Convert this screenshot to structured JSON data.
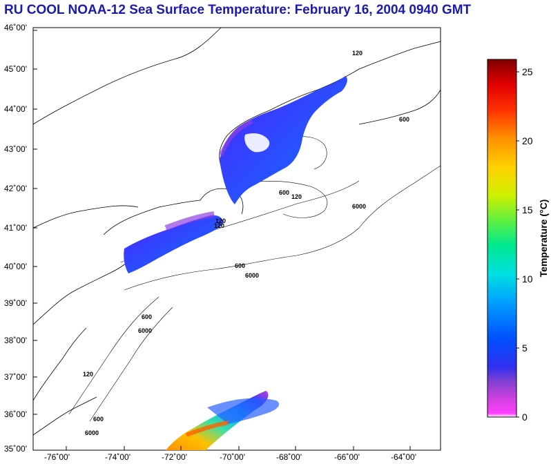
{
  "title": "RU COOL  NOAA-12  Sea Surface Temperature:  February 16, 2004 0940 GMT",
  "map": {
    "lat_labels": [
      "46˚00'",
      "45˚00'",
      "44˚00'",
      "43˚00'",
      "42˚00'",
      "41˚00'",
      "40˚00'",
      "39˚00'",
      "38˚00'",
      "37˚00'",
      "36˚00'",
      "35˚00'"
    ],
    "lon_labels": [
      "-76˚00'",
      "-74˚00'",
      "-72˚00'",
      "-70˚00'",
      "-68˚00'",
      "-66˚00'",
      "-64˚00'"
    ],
    "contour_labels": [
      "120",
      "600",
      "6000",
      "120",
      "600",
      "6000",
      "600",
      "6000",
      "120",
      "600",
      "120",
      "600",
      "120",
      "6000"
    ]
  },
  "colorbar": {
    "title": "Temperature (°C)",
    "tick_labels": [
      "25",
      "20",
      "15",
      "10",
      "5",
      "0"
    ],
    "range": [
      0,
      26
    ]
  },
  "colors": {
    "title": "#1a1ab0",
    "land_line": "#000000"
  }
}
